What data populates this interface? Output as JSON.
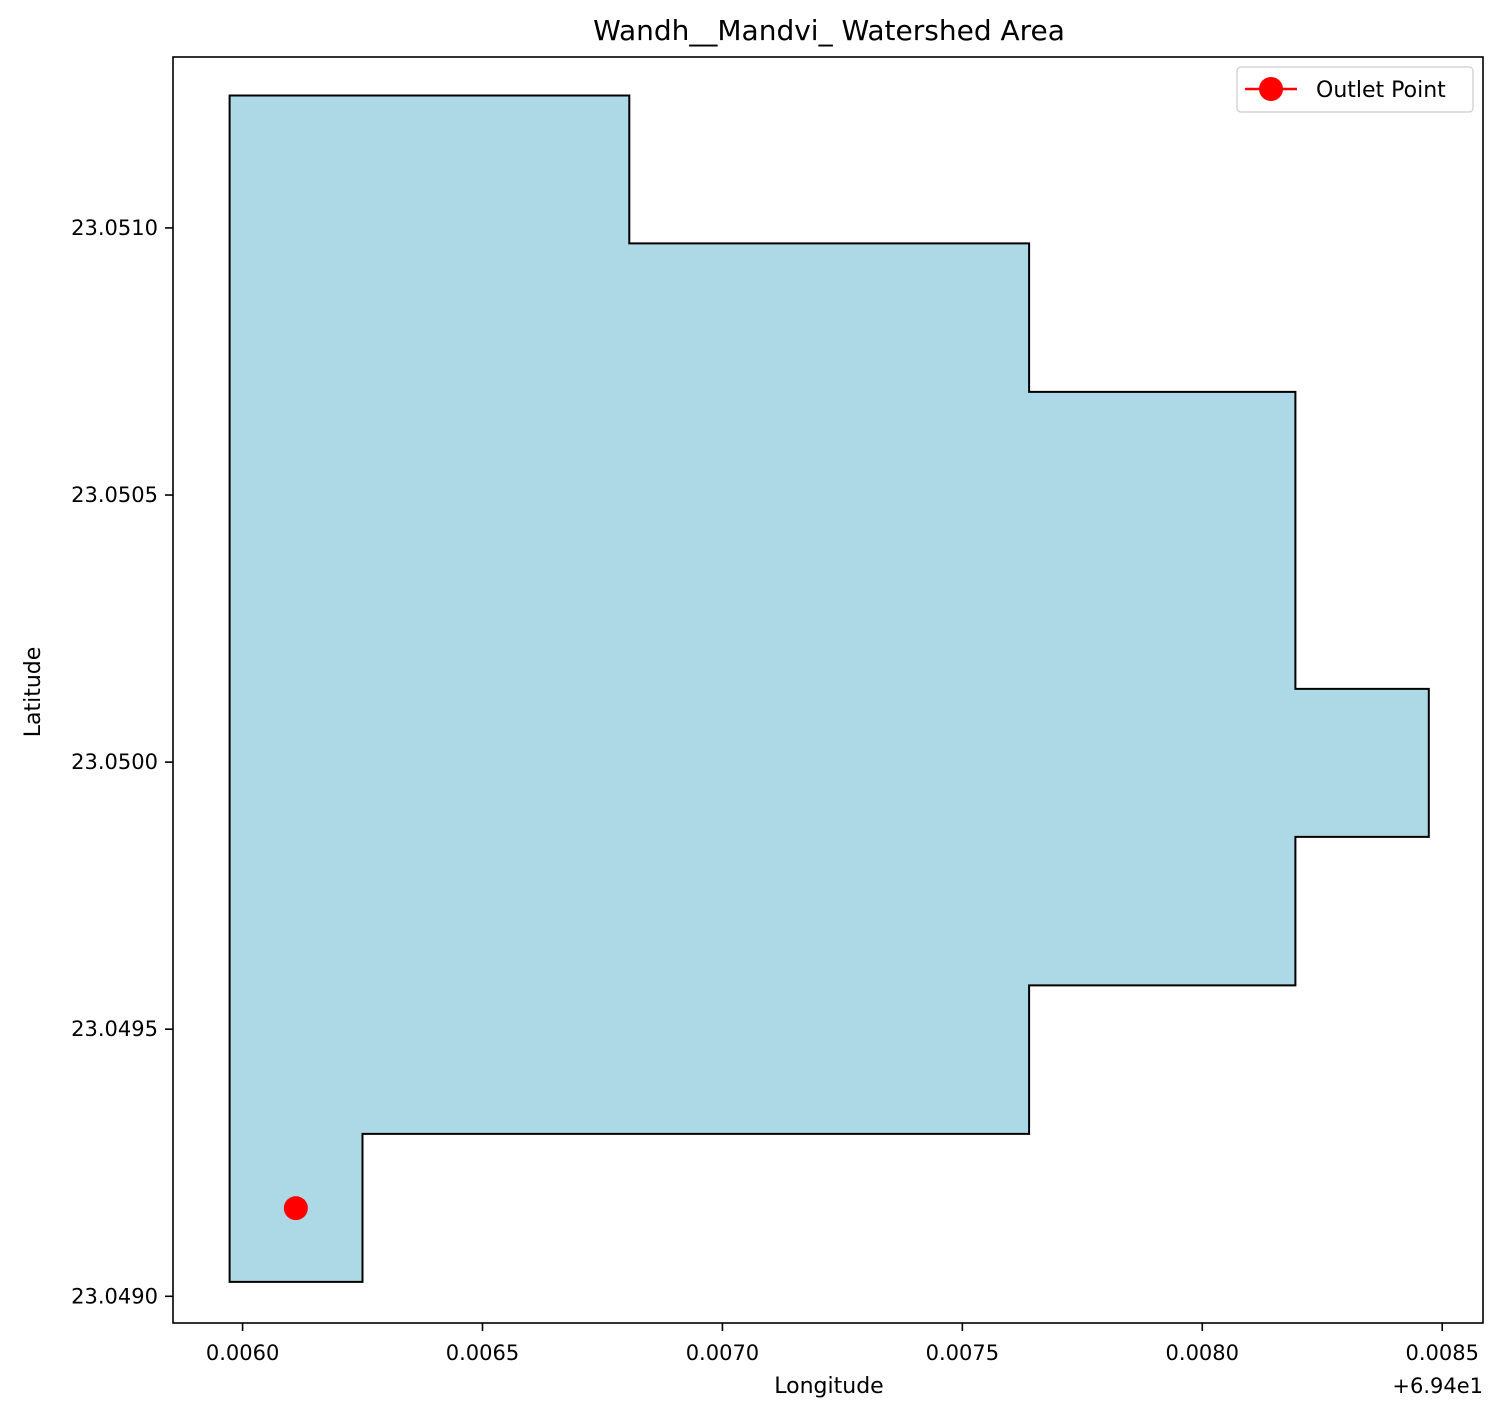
{
  "chart_data": {
    "type": "area",
    "title": "Wandh__Mandvi_ Watershed Area",
    "xlabel": "Longitude",
    "ylabel": "Latitude",
    "x_offset_label": "+6.94e1",
    "xlim": [
      0.005855,
      0.008585
    ],
    "ylim": [
      23.04895,
      23.05132
    ],
    "x_ticks": [
      {
        "value": 0.006,
        "label": "0.0060"
      },
      {
        "value": 0.0065,
        "label": "0.0065"
      },
      {
        "value": 0.007,
        "label": "0.0070"
      },
      {
        "value": 0.0075,
        "label": "0.0075"
      },
      {
        "value": 0.008,
        "label": "0.0080"
      },
      {
        "value": 0.0085,
        "label": "0.0085"
      }
    ],
    "y_ticks": [
      {
        "value": 23.049,
        "label": "23.0490"
      },
      {
        "value": 23.0495,
        "label": "23.0495"
      },
      {
        "value": 23.05,
        "label": "23.0500"
      },
      {
        "value": 23.0505,
        "label": "23.0505"
      },
      {
        "value": 23.051,
        "label": "23.0510"
      }
    ],
    "watershed": {
      "fill": "#add8e6",
      "edge": "#000000",
      "points": [
        [
          0.005973,
          23.051248
        ],
        [
          0.006806,
          23.051248
        ],
        [
          0.006806,
          23.050971
        ],
        [
          0.007639,
          23.050971
        ],
        [
          0.007639,
          23.050693
        ],
        [
          0.008194,
          23.050693
        ],
        [
          0.008194,
          23.050137
        ],
        [
          0.008472,
          23.050137
        ],
        [
          0.008472,
          23.04986
        ],
        [
          0.008194,
          23.04986
        ],
        [
          0.008194,
          23.049582
        ],
        [
          0.007639,
          23.049582
        ],
        [
          0.007639,
          23.049304
        ],
        [
          0.00625,
          23.049304
        ],
        [
          0.00625,
          23.049027
        ],
        [
          0.005973,
          23.049027
        ]
      ]
    },
    "outlet": {
      "name": "Outlet Point",
      "x": 0.006111,
      "y": 23.049165,
      "color": "#ff0000"
    },
    "legend": {
      "placement": "top-right",
      "entries": [
        "Outlet Point"
      ]
    },
    "grid": false
  }
}
